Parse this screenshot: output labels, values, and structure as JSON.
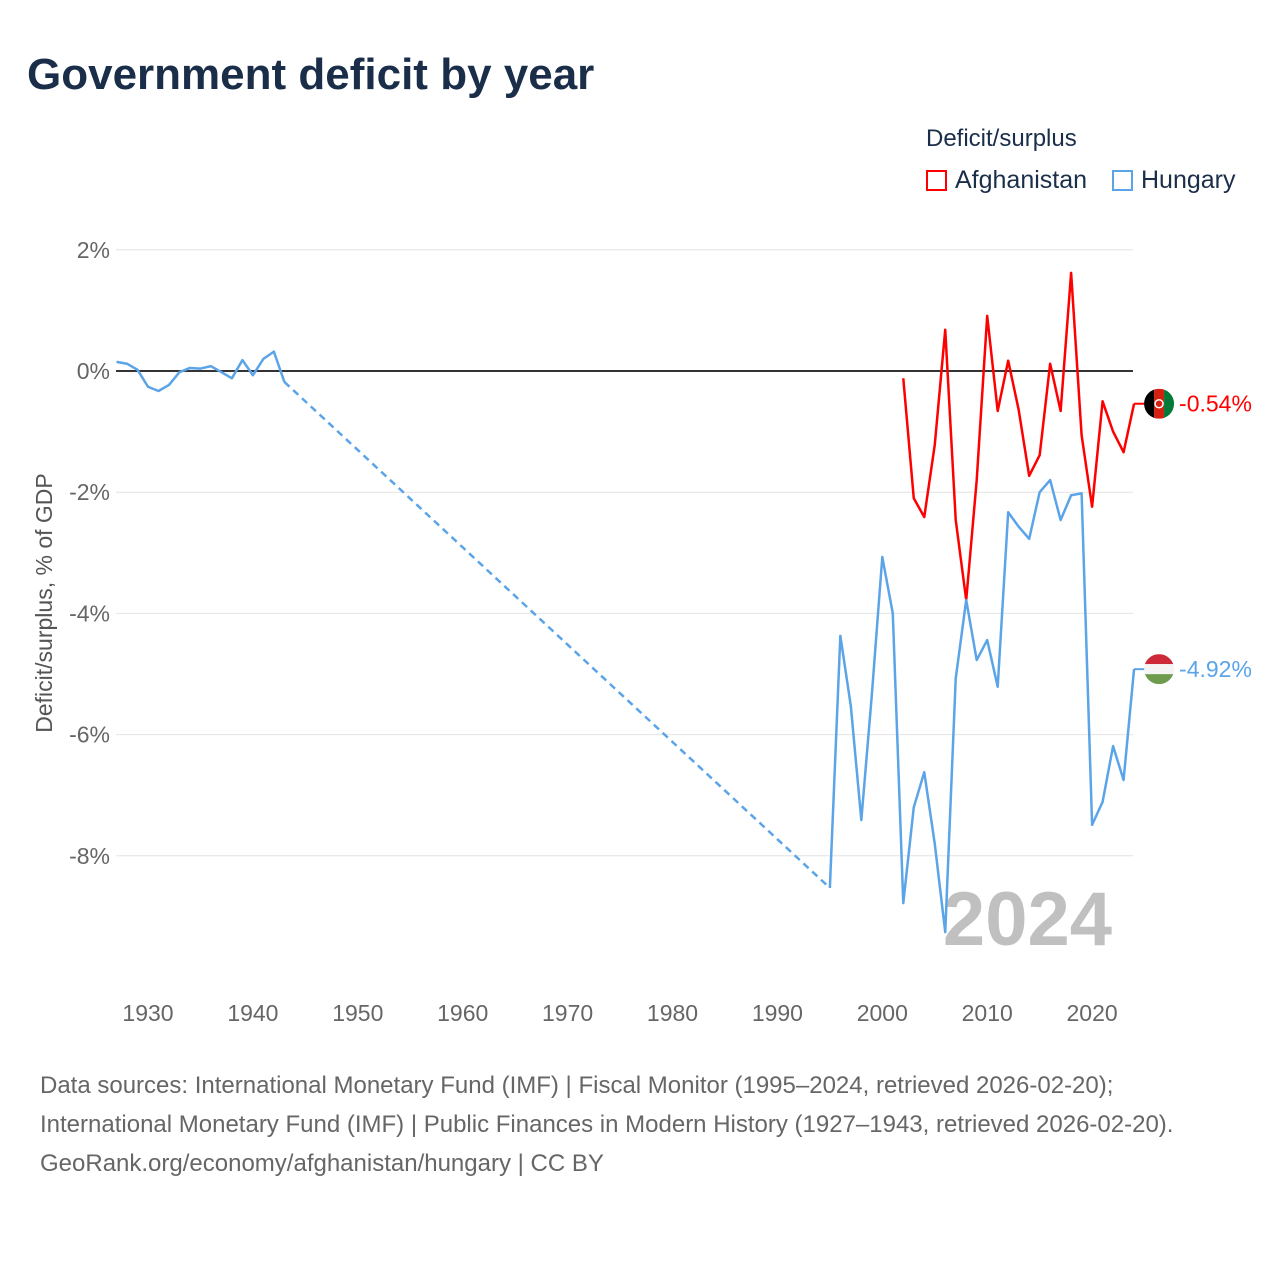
{
  "chart_data": {
    "type": "line",
    "title": "Government deficit by year",
    "ylabel": "Deficit/surplus, % of GDP",
    "xlabel": "",
    "xlim": [
      1927,
      2024
    ],
    "ylim": [
      -10,
      2
    ],
    "x_ticks": [
      1930,
      1940,
      1950,
      1960,
      1970,
      1980,
      1990,
      2000,
      2010,
      2020
    ],
    "x_tick_labels": [
      "1930",
      "1940",
      "1950",
      "1960",
      "1970",
      "1980",
      "1990",
      "2000",
      "2010",
      "2020"
    ],
    "y_ticks": [
      2,
      0,
      -2,
      -4,
      -6,
      -8
    ],
    "y_tick_labels": [
      "2%",
      "0%",
      "-2%",
      "-4%",
      "-6%",
      "-8%"
    ],
    "grid": true,
    "legend_title": "Deficit/surplus",
    "legend_position": "top-right",
    "watermark_year": "2024",
    "series": [
      {
        "name": "Afghanistan",
        "color": "#ff0000",
        "end_label": "-0.54%",
        "x": [
          2002,
          2003,
          2004,
          2005,
          2006,
          2007,
          2008,
          2009,
          2010,
          2011,
          2012,
          2013,
          2014,
          2015,
          2016,
          2017,
          2018,
          2019,
          2020,
          2021,
          2022,
          2023,
          2024
        ],
        "values": [
          -0.12,
          -2.1,
          -2.41,
          -1.22,
          0.68,
          -2.46,
          -3.78,
          -1.8,
          0.91,
          -0.66,
          0.17,
          -0.64,
          -1.73,
          -1.39,
          0.12,
          -0.66,
          1.62,
          -1.06,
          -2.24,
          -0.5,
          -1.0,
          -1.34,
          -0.54
        ]
      },
      {
        "name": "Hungary",
        "color": "#5ba4e8",
        "end_label": "-4.92%",
        "x": [
          1927,
          1928,
          1929,
          1930,
          1931,
          1932,
          1933,
          1934,
          1935,
          1936,
          1937,
          1938,
          1939,
          1940,
          1941,
          1942,
          1943,
          1995,
          1996,
          1997,
          1998,
          1999,
          2000,
          2001,
          2002,
          2003,
          2004,
          2005,
          2006,
          2007,
          2008,
          2009,
          2010,
          2011,
          2012,
          2013,
          2014,
          2015,
          2016,
          2017,
          2018,
          2019,
          2020,
          2021,
          2022,
          2023,
          2024
        ],
        "values": [
          0.15,
          0.12,
          0.02,
          -0.26,
          -0.33,
          -0.23,
          -0.02,
          0.05,
          0.04,
          0.08,
          -0.02,
          -0.12,
          0.18,
          -0.07,
          0.2,
          0.32,
          -0.18,
          -8.53,
          -4.37,
          -5.53,
          -7.41,
          -5.35,
          -3.07,
          -4.0,
          -8.78,
          -7.2,
          -6.62,
          -7.8,
          -9.26,
          -5.07,
          -3.78,
          -4.77,
          -4.44,
          -5.21,
          -2.33,
          -2.57,
          -2.77,
          -2.0,
          -1.8,
          -2.46,
          -2.05,
          -2.02,
          -7.49,
          -7.11,
          -6.19,
          -6.75,
          -4.92
        ],
        "gap_after": 1943
      }
    ]
  },
  "footer": {
    "sources": "Data sources: International Monetary Fund (IMF) | Fiscal Monitor (1995–2024, retrieved 2026-02-20); International Monetary Fund (IMF) | Public Finances in Modern History (1927–1943, retrieved 2026-02-20).",
    "attribution": "GeoRank.org/economy/afghanistan/hungary | CC BY"
  }
}
